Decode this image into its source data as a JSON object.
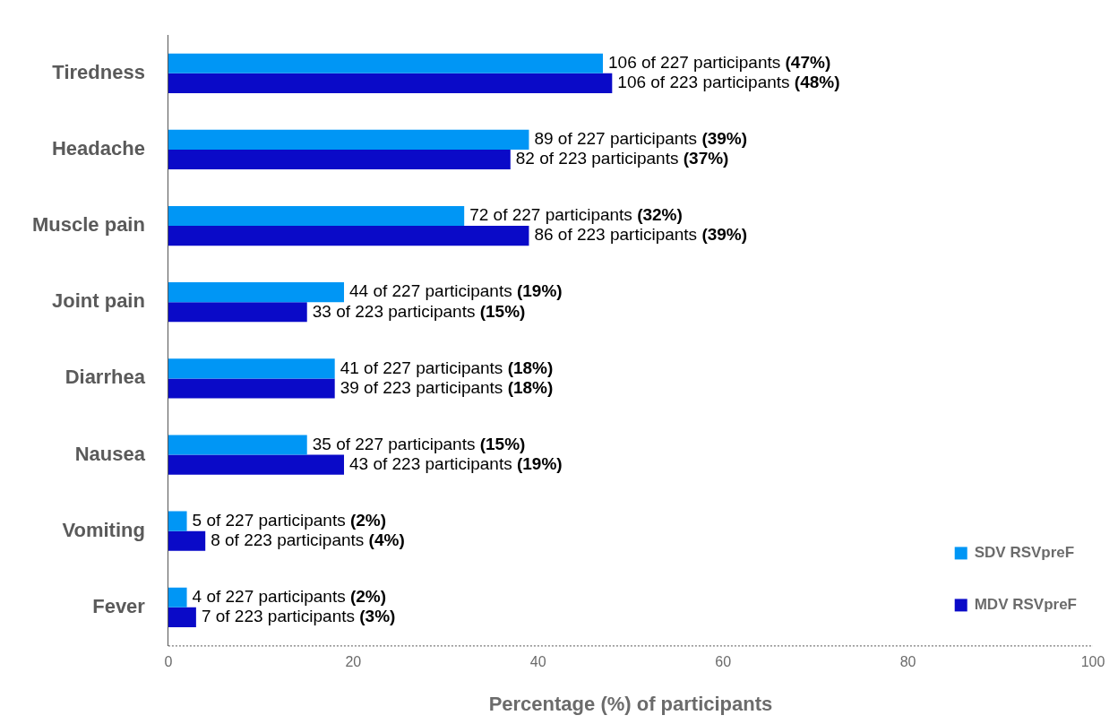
{
  "chart_data": {
    "type": "bar",
    "orientation": "horizontal",
    "xlabel": "Percentage (%) of participants",
    "categories": [
      "Tiredness",
      "Headache",
      "Muscle pain",
      "Joint pain",
      "Diarrhea",
      "Nausea",
      "Vomiting",
      "Fever"
    ],
    "series": [
      {
        "name": "SDV RSVpreF",
        "color": "#0096f5",
        "values": [
          47,
          39,
          32,
          19,
          18,
          15,
          2,
          2
        ],
        "value_labels": [
          "106 of 227 participants (47%)",
          "89 of 227 participants (39%)",
          "72 of 227 participants (32%)",
          "44 of 227 participants (19%)",
          "41 of 227 participants (18%)",
          "35 of 227 participants (15%)",
          "5 of 227 participants (2%)",
          "4 of 227 participants (2%)"
        ]
      },
      {
        "name": "MDV RSVpreF",
        "color": "#0a0ac8",
        "values": [
          48,
          37,
          39,
          15,
          18,
          19,
          4,
          3
        ],
        "value_labels": [
          "106 of 223 participants (48%)",
          "82 of 223 participants (37%)",
          "86 of 223 participants (39%)",
          "33 of 223 participants (15%)",
          "39 of 223 participants (18%)",
          "43 of 223 participants (19%)",
          "8 of 223 participants (4%)",
          "7 of 223 participants (3%)"
        ]
      }
    ],
    "xlim": [
      0,
      100
    ],
    "xticks": [
      0,
      20,
      40,
      60,
      80,
      100
    ],
    "grid": false,
    "legend": "bottom right"
  }
}
